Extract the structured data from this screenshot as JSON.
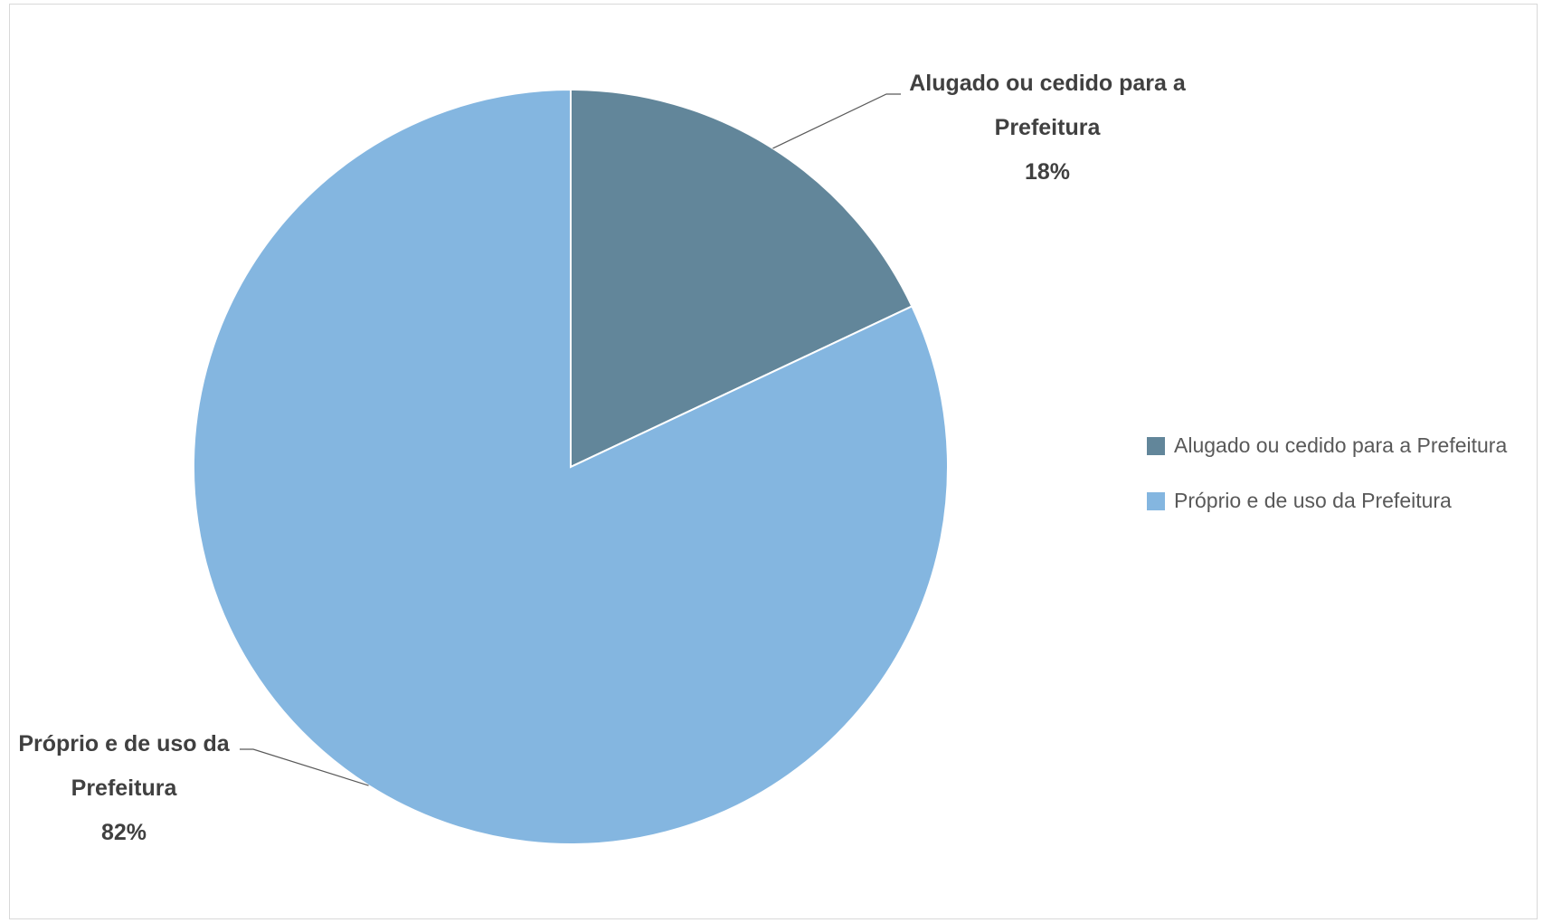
{
  "chart_data": {
    "type": "pie",
    "title": "",
    "categories": [
      "Alugado ou cedido para a Prefeitura",
      "Próprio e de uso da Prefeitura"
    ],
    "values": [
      18,
      82
    ],
    "unit": "%",
    "colors": [
      "#62869A",
      "#84B6E0"
    ],
    "legend_position": "right",
    "start_angle": "12 o'clock, clockwise",
    "data_labels": [
      {
        "line1": "Alugado ou cedido para a",
        "line2": "Prefeitura",
        "pct": "18%"
      },
      {
        "line1": "Próprio e de uso da",
        "line2": "Prefeitura",
        "pct": "82%"
      }
    ]
  },
  "legend": {
    "items": [
      {
        "label": "Alugado ou cedido para a Prefeitura",
        "color": "#62869A"
      },
      {
        "label": "Próprio e de uso da Prefeitura",
        "color": "#84B6E0"
      }
    ]
  }
}
